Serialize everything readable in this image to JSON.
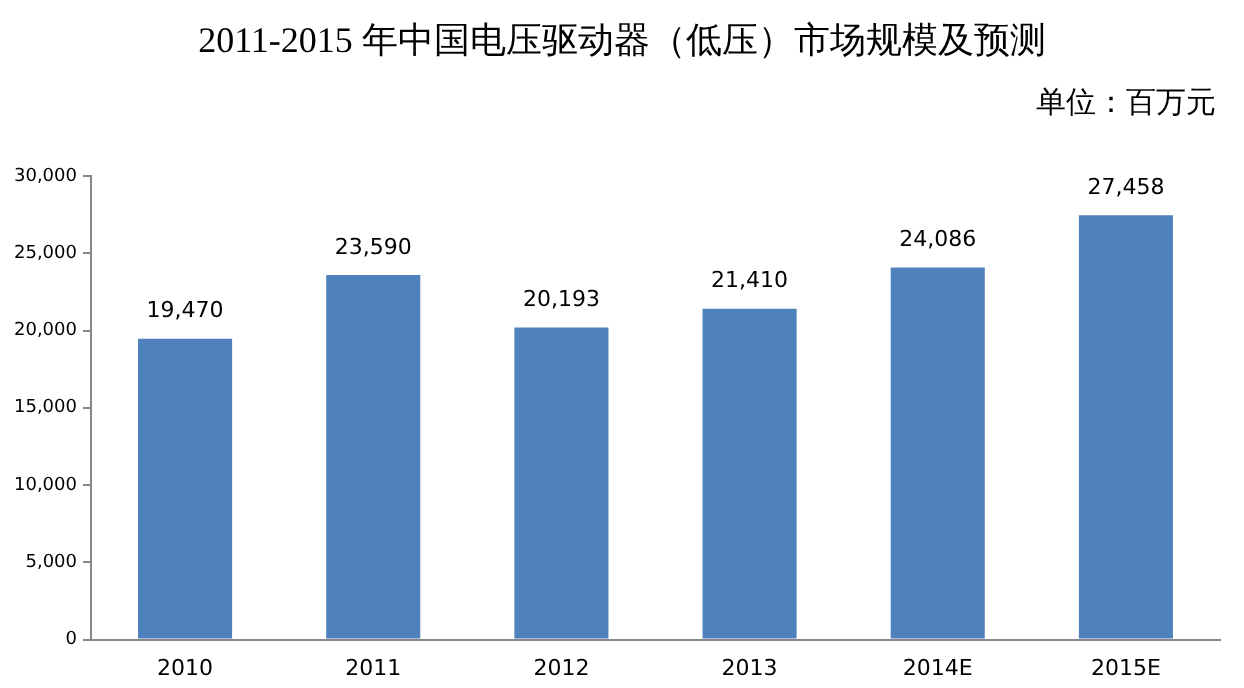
{
  "chart_data": {
    "type": "bar",
    "title": "2011-2015 年中国电压驱动器（低压）市场规模及预测",
    "subtitle": "单位：百万元",
    "categories": [
      "2010",
      "2011",
      "2012",
      "2013",
      "2014E",
      "2015E"
    ],
    "values": [
      19470,
      23590,
      20193,
      21410,
      24086,
      27458
    ],
    "value_labels": [
      "19,470",
      "23,590",
      "20,193",
      "21,410",
      "24,086",
      "27,458"
    ],
    "color": "#4f81bd",
    "ylim": [
      0,
      30000
    ],
    "yticks": [
      {
        "value": 0,
        "label": "0"
      },
      {
        "value": 5000,
        "label": "5,000"
      },
      {
        "value": 10000,
        "label": "10,000"
      },
      {
        "value": 15000,
        "label": "15,000"
      },
      {
        "value": 20000,
        "label": "20,000"
      },
      {
        "value": 25000,
        "label": "25,000"
      },
      {
        "value": 30000,
        "label": "30,000"
      }
    ],
    "grid": false,
    "legend": false
  }
}
